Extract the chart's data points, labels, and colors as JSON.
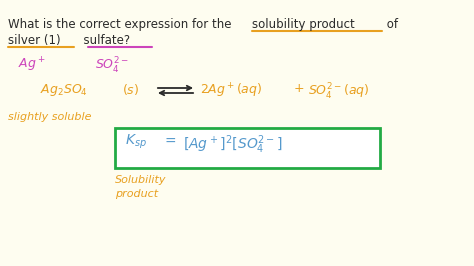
{
  "bg_color": "#FEFDF0",
  "dark": "#2a2a2a",
  "orange": "#E8A020",
  "magenta": "#CC44BB",
  "blue": "#5599CC",
  "green": "#22AA44",
  "title_line1": "What is the correct expression for the ",
  "title_solubility_product": "solubility product",
  "title_of": " of",
  "title_line2a": "silver (1)",
  "title_line2b": "  sulfate?",
  "font_title": 8.5,
  "font_ions": 9,
  "font_eq": 9,
  "font_ksp": 10
}
